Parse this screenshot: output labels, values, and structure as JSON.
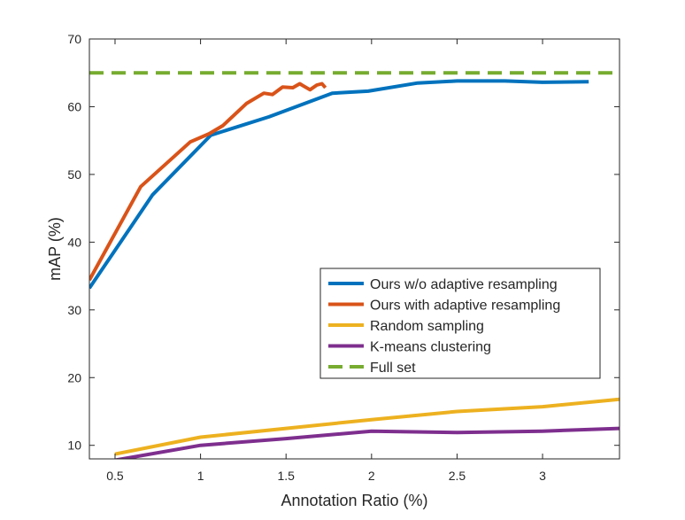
{
  "chart_data": {
    "type": "line",
    "title": "",
    "xlabel": "Annotation Ratio (%)",
    "ylabel": "mAP (%)",
    "xlim": [
      0.35,
      3.45
    ],
    "ylim": [
      8,
      70
    ],
    "xticks": [
      0.5,
      1,
      1.5,
      2,
      2.5,
      3
    ],
    "xtick_labels": [
      "0.5",
      "1",
      "1.5",
      "2",
      "2.5",
      "3"
    ],
    "yticks": [
      10,
      20,
      30,
      40,
      50,
      60,
      70
    ],
    "ytick_labels": [
      "10",
      "20",
      "30",
      "40",
      "50",
      "60",
      "70"
    ],
    "grid": false,
    "legend_position": "lower-right",
    "series": [
      {
        "name": "Ours w/o adaptive resampling",
        "color": "#0072BD",
        "dash": "solid",
        "x": [
          0.35,
          0.72,
          1.06,
          1.4,
          1.77,
          1.98,
          2.27,
          2.5,
          2.78,
          3.0,
          3.27
        ],
        "y": [
          33.2,
          47.0,
          55.8,
          58.5,
          62.0,
          62.3,
          63.5,
          63.8,
          63.8,
          63.6,
          63.7
        ]
      },
      {
        "name": "Ours with adaptive resampling",
        "color": "#D95319",
        "dash": "solid",
        "x": [
          0.35,
          0.65,
          0.94,
          1.05,
          1.13,
          1.27,
          1.37,
          1.42,
          1.48,
          1.54,
          1.58,
          1.6,
          1.64,
          1.68,
          1.71,
          1.73
        ],
        "y": [
          34.4,
          48.2,
          54.8,
          56.0,
          57.2,
          60.5,
          62.0,
          61.8,
          62.9,
          62.8,
          63.4,
          63.1,
          62.5,
          63.2,
          63.4,
          62.8
        ]
      },
      {
        "name": "Random sampling",
        "color": "#EDB120",
        "dash": "solid",
        "x": [
          0.5,
          1.0,
          1.5,
          2.0,
          2.5,
          3.0,
          3.45
        ],
        "y": [
          8.7,
          11.2,
          12.5,
          13.8,
          15.0,
          15.7,
          16.8
        ]
      },
      {
        "name": "K-means clustering",
        "color": "#7E2F8E",
        "dash": "solid",
        "x": [
          0.5,
          1.0,
          1.5,
          2.0,
          2.5,
          3.0,
          3.45
        ],
        "y": [
          7.8,
          10.0,
          11.0,
          12.1,
          11.9,
          12.1,
          12.5
        ]
      },
      {
        "name": "Full set",
        "color": "#77AC30",
        "dash": "dashed",
        "x": [
          0.35,
          3.45
        ],
        "y": [
          65.0,
          65.0
        ]
      }
    ]
  }
}
